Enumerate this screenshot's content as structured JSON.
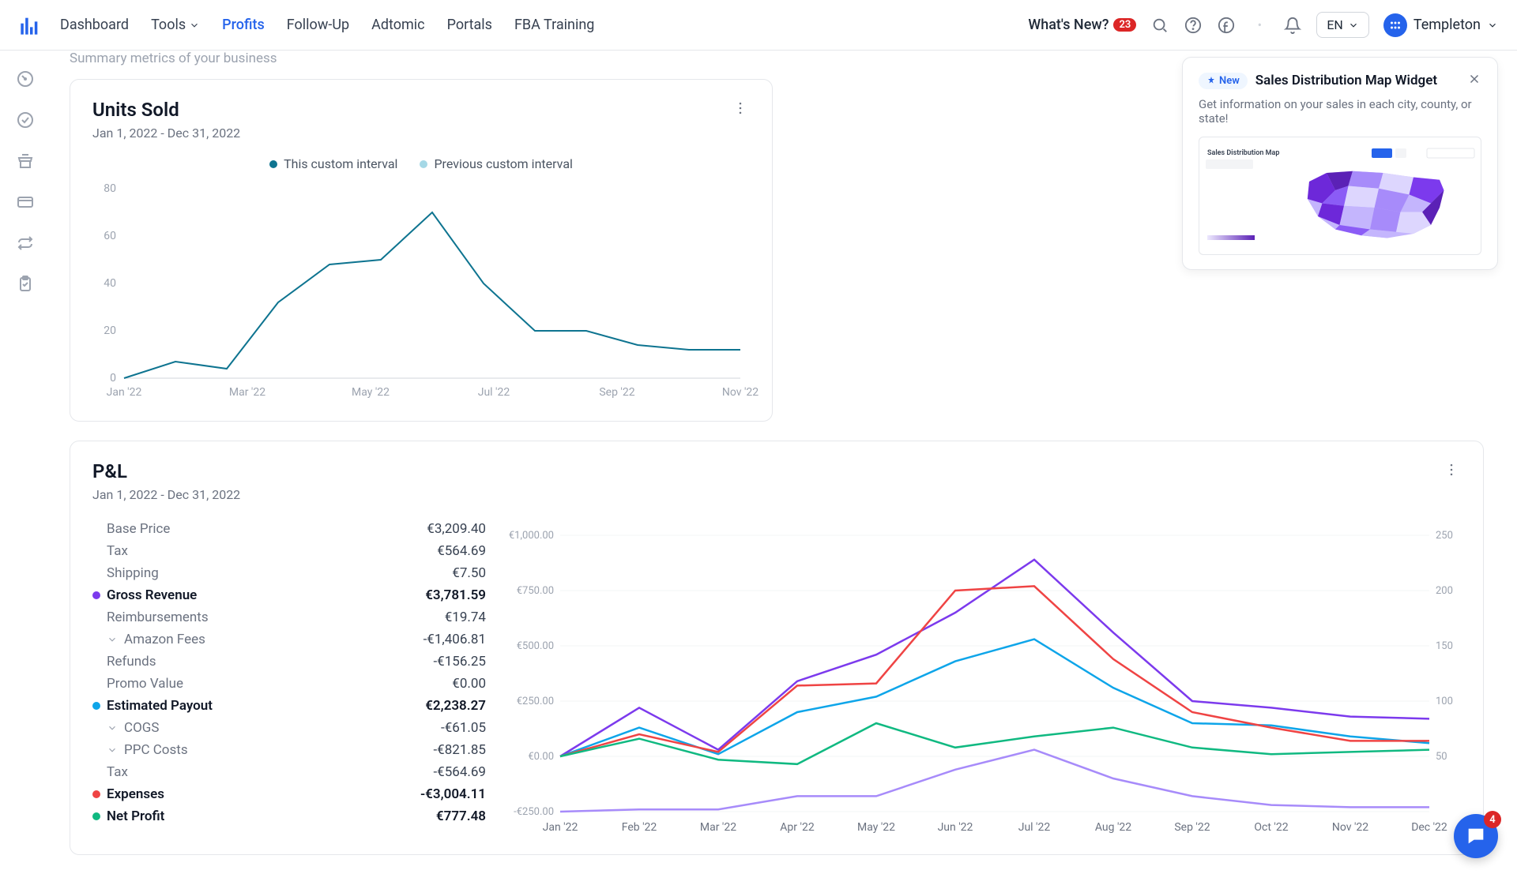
{
  "topnav": {
    "items": [
      "Dashboard",
      "Tools",
      "Profits",
      "Follow-Up",
      "Adtomic",
      "Portals",
      "FBA Training"
    ],
    "active_index": 2,
    "whats_new": "What's New?",
    "whats_new_count": "23",
    "lang": "EN",
    "user_name": "Templeton"
  },
  "subtitle": "Summary metrics of your business",
  "units_card": {
    "title": "Units Sold",
    "range": "Jan 1, 2022 - Dec 31, 2022",
    "legend": [
      "This custom interval",
      "Previous custom interval"
    ],
    "legend_colors": [
      "#0e7490",
      "#a5d8e6"
    ],
    "chart": {
      "type": "line",
      "x_labels": [
        "Jan '22",
        "Mar '22",
        "May '22",
        "Jul '22",
        "Sep '22",
        "Nov '22"
      ],
      "y_ticks": [
        0,
        20,
        40,
        60,
        80
      ],
      "series": [
        {
          "color": "#0e7490",
          "values": [
            0,
            7,
            4,
            32,
            48,
            50,
            70,
            40,
            20,
            20,
            14,
            12,
            12
          ]
        }
      ],
      "ylim": [
        0,
        80
      ],
      "grid_color": "#f3f4f6"
    }
  },
  "pnl_card": {
    "title": "P&L",
    "range": "Jan 1, 2022 - Dec 31, 2022",
    "rows": [
      {
        "label": "Base Price",
        "value": "€3,209.40",
        "indent": true
      },
      {
        "label": "Tax",
        "value": "€564.69",
        "indent": true
      },
      {
        "label": "Shipping",
        "value": "€7.50",
        "indent": true
      },
      {
        "label": "Gross Revenue",
        "value": "€3,781.59",
        "strong": true,
        "dot": "#7c3aed"
      },
      {
        "label": "Reimbursements",
        "value": "€19.74",
        "indent": true
      },
      {
        "label": "Amazon Fees",
        "value": "-€1,406.81",
        "indent": true,
        "chev": true
      },
      {
        "label": "Refunds",
        "value": "-€156.25",
        "indent": true
      },
      {
        "label": "Promo Value",
        "value": "€0.00",
        "indent": true
      },
      {
        "label": "Estimated Payout",
        "value": "€2,238.27",
        "strong": true,
        "dot": "#0ea5e9"
      },
      {
        "label": "COGS",
        "value": "-€61.05",
        "indent": true,
        "chev": true
      },
      {
        "label": "PPC Costs",
        "value": "-€821.85",
        "indent": true,
        "chev": true
      },
      {
        "label": "Tax",
        "value": "-€564.69",
        "indent": true
      },
      {
        "label": "Expenses",
        "value": "-€3,004.11",
        "strong": true,
        "dot": "#ef4444"
      },
      {
        "label": "Net Profit",
        "value": "€777.48",
        "strong": true,
        "dot": "#10b981"
      }
    ],
    "chart": {
      "type": "line",
      "x_labels": [
        "Jan '22",
        "Feb '22",
        "Mar '22",
        "Apr '22",
        "May '22",
        "Jun '22",
        "Jul '22",
        "Aug '22",
        "Sep '22",
        "Oct '22",
        "Nov '22",
        "Dec '22"
      ],
      "y_left_ticks": [
        "-€250.00",
        "€0.00",
        "€250.00",
        "€500.00",
        "€750.00",
        "€1,000.00"
      ],
      "y_right_ticks": [
        "50",
        "100",
        "150",
        "200",
        "250"
      ],
      "series": [
        {
          "name": "Gross Revenue",
          "color": "#7c3aed",
          "values": [
            0,
            220,
            30,
            340,
            460,
            650,
            890,
            560,
            250,
            220,
            180,
            170
          ]
        },
        {
          "name": "Estimated Payout",
          "color": "#0ea5e9",
          "values": [
            0,
            130,
            10,
            200,
            270,
            430,
            530,
            310,
            150,
            140,
            90,
            60
          ]
        },
        {
          "name": "Expenses",
          "color": "#ef4444",
          "values": [
            0,
            100,
            20,
            320,
            330,
            750,
            770,
            440,
            200,
            130,
            70,
            70
          ]
        },
        {
          "name": "Net Profit",
          "color": "#10b981",
          "values": [
            0,
            80,
            -15,
            -35,
            150,
            40,
            90,
            130,
            40,
            10,
            20,
            30
          ]
        },
        {
          "name": "PPC",
          "color": "#a78bfa",
          "values": [
            -250,
            -240,
            -240,
            -180,
            -180,
            -60,
            30,
            -100,
            -180,
            -220,
            -230,
            -230
          ]
        }
      ],
      "ylim": [
        -250,
        1000
      ],
      "grid_color": "#f3f4f6"
    }
  },
  "callout": {
    "pill": "New",
    "title": "Sales Distribution Map Widget",
    "desc": "Get information on your sales in each city, county, or state!",
    "map_title": "Sales Distribution Map"
  },
  "chat_badge": "4"
}
